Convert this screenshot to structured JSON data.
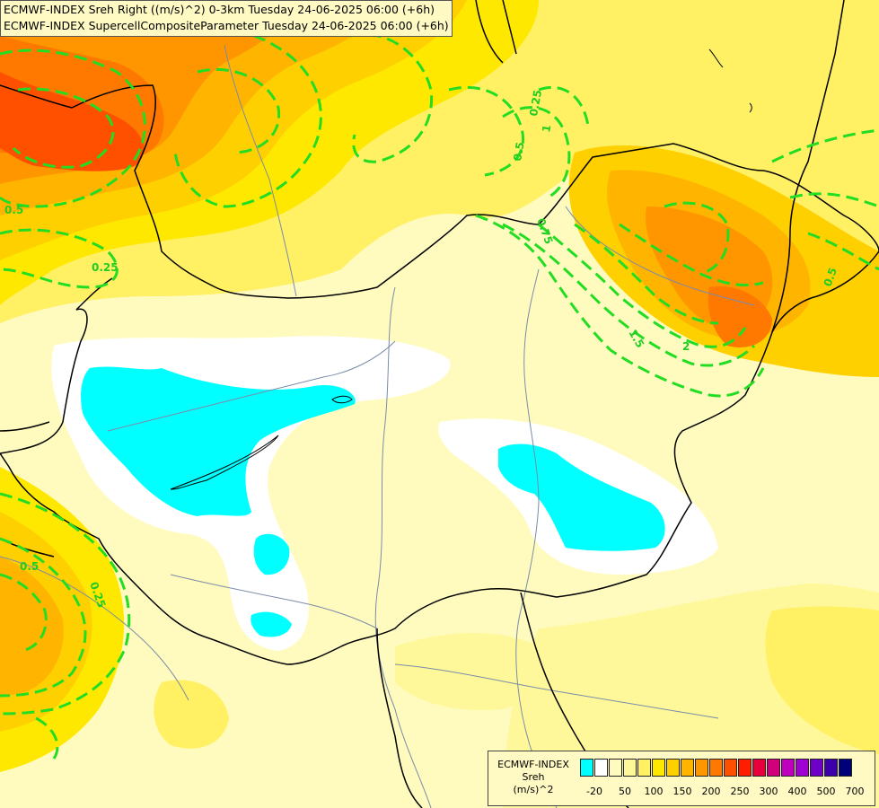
{
  "header": {
    "line1": "ECMWF-INDEX Sreh Right ((m/s)^2) 0-3km Tuesday 24-06-2025 06:00 (+6h)",
    "line2": "ECMWF-INDEX SupercellCompositeParameter Tuesday 24-06-2025 06:00 (+6h)"
  },
  "legend": {
    "title_lines": [
      "ECMWF-INDEX",
      "Sreh",
      "(m/s)^2"
    ],
    "colors": [
      "#00ffff",
      "#ffffff",
      "#fffbbf",
      "#fff89a",
      "#fff064",
      "#ffe800",
      "#ffd000",
      "#ffb400",
      "#ff9600",
      "#ff7800",
      "#ff5000",
      "#ff1e00",
      "#e6003c",
      "#d2007d",
      "#be00be",
      "#a000d2",
      "#6e00c8",
      "#3c00aa",
      "#000078"
    ],
    "ticks": [
      "-20",
      "50",
      "100",
      "150",
      "200",
      "250",
      "300",
      "400",
      "500",
      "700"
    ]
  },
  "contour_labels": [
    "0.25",
    "0.5",
    "0.75",
    "0.5",
    "0.25",
    "1",
    "1.5",
    "2",
    "0.5",
    "0.25",
    "0.5"
  ],
  "colors": {
    "background": "#fffbbf",
    "contour": "#22dd22",
    "border": "#000000",
    "river": "#7a8ca8",
    "low_sreh": "#00ffff"
  }
}
